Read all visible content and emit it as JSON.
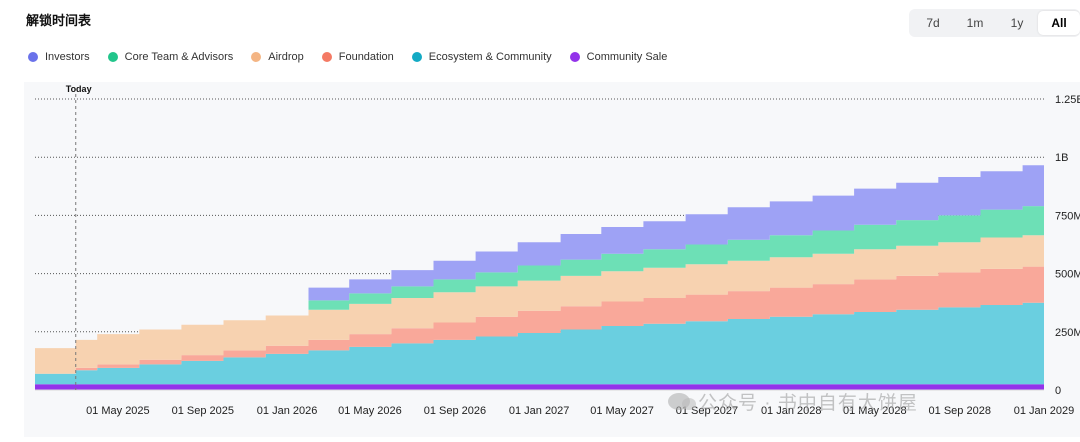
{
  "title": "解锁时间表",
  "range_tabs": [
    "7d",
    "1m",
    "1y",
    "All"
  ],
  "active_range": "All",
  "watermark": "公众号 · 书中自有大饼屋",
  "chart_data": {
    "type": "area",
    "stacked": true,
    "stepped": true,
    "x_type": "date",
    "xlim": [
      "2025-01-01",
      "2029-01-01"
    ],
    "ylim": [
      0,
      1250000000
    ],
    "grid": true,
    "legend_position": "top-left",
    "today": {
      "label": "Today",
      "date": "2025-03-01"
    },
    "x_ticks": [
      "01 May 2025",
      "01 Sep 2025",
      "01 Jan 2026",
      "01 May 2026",
      "01 Sep 2026",
      "01 Jan 2027",
      "01 May 2027",
      "01 Sep 2027",
      "01 Jan 2028",
      "01 May 2028",
      "01 Sep 2028",
      "01 Jan 2029"
    ],
    "y_ticks": [
      {
        "value": 0,
        "label": "0"
      },
      {
        "value": 250000000,
        "label": "250M"
      },
      {
        "value": 500000000,
        "label": "500M"
      },
      {
        "value": 750000000,
        "label": "750M"
      },
      {
        "value": 1000000000,
        "label": "1B"
      },
      {
        "value": 1250000000,
        "label": "1.25B"
      }
    ],
    "x": [
      "2025-01-01",
      "2025-03-01",
      "2025-04-01",
      "2025-06-01",
      "2025-08-01",
      "2025-10-01",
      "2025-12-01",
      "2026-02-01",
      "2026-04-01",
      "2026-06-01",
      "2026-08-01",
      "2026-10-01",
      "2026-12-01",
      "2027-02-01",
      "2027-04-01",
      "2027-06-01",
      "2027-08-01",
      "2027-10-01",
      "2027-12-01",
      "2028-02-01",
      "2028-04-01",
      "2028-06-01",
      "2028-08-01",
      "2028-10-01",
      "2028-12-01",
      "2029-01-01"
    ],
    "series": [
      {
        "name": "Community Sale",
        "color": "#9333ea",
        "values": [
          25,
          25,
          25,
          25,
          25,
          25,
          25,
          25,
          25,
          25,
          25,
          25,
          25,
          25,
          25,
          25,
          25,
          25,
          25,
          25,
          25,
          25,
          25,
          25,
          25,
          25
        ]
      },
      {
        "name": "Ecosystem & Community",
        "color": "#6acfe0",
        "values": [
          45,
          60,
          70,
          85,
          100,
          115,
          130,
          145,
          160,
          175,
          190,
          205,
          220,
          235,
          250,
          260,
          270,
          280,
          290,
          300,
          310,
          320,
          330,
          340,
          350,
          350
        ]
      },
      {
        "name": "Foundation",
        "color": "#f9a89a",
        "values": [
          0,
          10,
          15,
          20,
          25,
          30,
          35,
          45,
          55,
          65,
          75,
          85,
          95,
          100,
          105,
          110,
          115,
          120,
          125,
          130,
          140,
          145,
          150,
          155,
          155,
          155
        ]
      },
      {
        "name": "Airdrop",
        "color": "#f7d2b0",
        "values": [
          110,
          120,
          130,
          130,
          130,
          130,
          130,
          130,
          130,
          130,
          130,
          130,
          130,
          130,
          130,
          130,
          130,
          130,
          130,
          130,
          130,
          130,
          130,
          135,
          135,
          135
        ]
      },
      {
        "name": "Core Team & Advisors",
        "color": "#6de0b6",
        "values": [
          0,
          0,
          0,
          0,
          0,
          0,
          0,
          40,
          45,
          50,
          55,
          60,
          65,
          70,
          75,
          80,
          85,
          90,
          95,
          100,
          105,
          110,
          115,
          120,
          125,
          125
        ]
      },
      {
        "name": "Investors",
        "color": "#9ea2f5",
        "values": [
          0,
          0,
          0,
          0,
          0,
          0,
          0,
          55,
          60,
          70,
          80,
          90,
          100,
          110,
          115,
          120,
          130,
          140,
          145,
          150,
          155,
          160,
          165,
          165,
          175,
          175
        ]
      }
    ],
    "legend": [
      {
        "name": "Investors",
        "color": "#6a72ea"
      },
      {
        "name": "Core Team & Advisors",
        "color": "#22c58b"
      },
      {
        "name": "Airdrop",
        "color": "#f4b584"
      },
      {
        "name": "Foundation",
        "color": "#f47a64"
      },
      {
        "name": "Ecosystem & Community",
        "color": "#13aac4"
      },
      {
        "name": "Community Sale",
        "color": "#9333ea"
      }
    ],
    "value_unit": "M",
    "colors": {
      "grid": "#555555",
      "panel": "#f7f8fa"
    }
  }
}
